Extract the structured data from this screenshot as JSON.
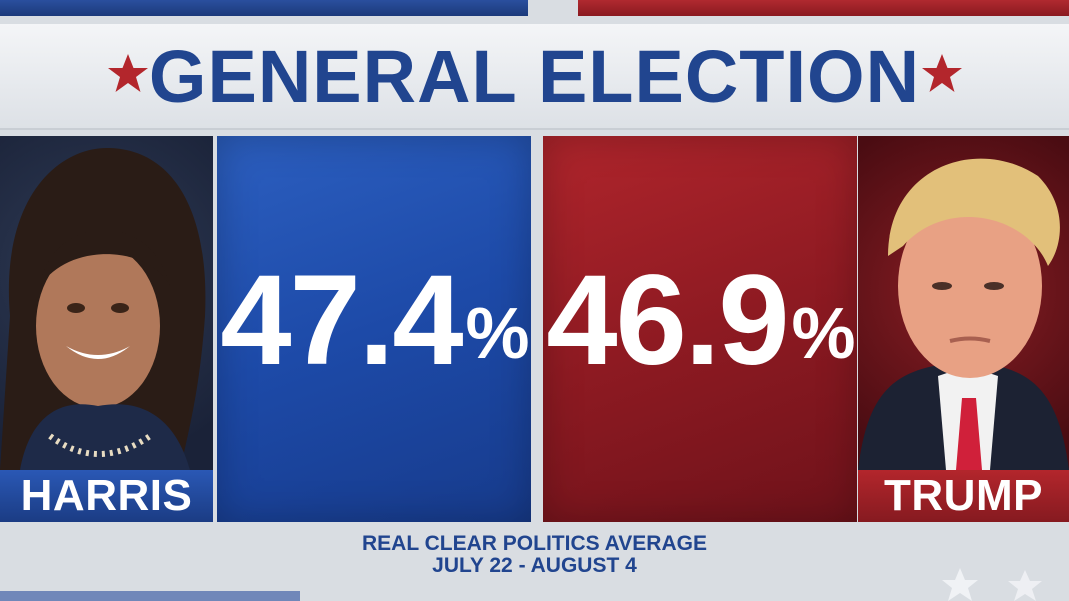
{
  "header": {
    "title": "GENERAL ELECTION"
  },
  "candidates": [
    {
      "name": "HARRIS",
      "percent": "47.4",
      "percent_symbol": "%",
      "color": "#1d4aa8"
    },
    {
      "name": "TRUMP",
      "percent": "46.9",
      "percent_symbol": "%",
      "color": "#8e1a22"
    }
  ],
  "source": {
    "line1": "REAL CLEAR POLITICS AVERAGE",
    "line2": "JULY 22 - AUGUST 4"
  },
  "colors": {
    "title": "#21458f",
    "star": "#b3262c"
  },
  "icons": {
    "star": "star-icon",
    "portrait": "person-icon"
  }
}
